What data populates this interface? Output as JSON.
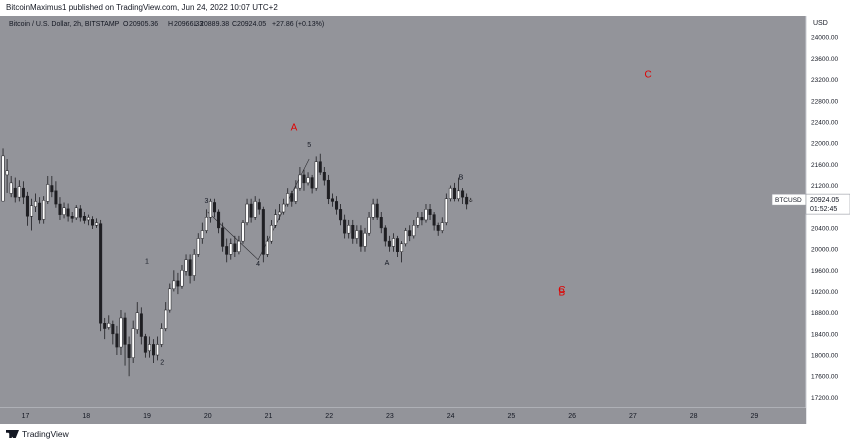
{
  "header": {
    "published": "BitcoinMaximus1 published on TradingView.com, Jun 24, 2022 10:07 UTC+2"
  },
  "legend": {
    "title": "Bitcoin / U.S. Dollar, 2h, BITSTAMP",
    "o_label": "O",
    "o_value": "20905.36",
    "h_label": "H",
    "h_value": "20966.33",
    "l_label": "L",
    "l_value": "20889.38",
    "c_label": "C",
    "c_value": "20924.05",
    "change": "+27.86 (+0.13%)"
  },
  "footer": {
    "brand": "TradingView"
  },
  "colors": {
    "background": "#93949a",
    "up_candle": "#ffffff",
    "down_candle": "#1e1e22",
    "red_label": "#e00000",
    "axis_bg": "#ffffff"
  },
  "chart_data": {
    "type": "candlestick",
    "currency_label": "USD",
    "ylim": [
      17000,
      24400
    ],
    "y_ticks": [
      24000,
      23600,
      23200,
      22800,
      22400,
      22000,
      21600,
      21200,
      20800,
      20400,
      20000,
      19600,
      19200,
      18800,
      18400,
      18000,
      17600,
      17200
    ],
    "y_tick_labels": [
      "24000.00",
      "23600.00",
      "23200.00",
      "22800.00",
      "22400.00",
      "22000.00",
      "21600.00",
      "21200.00",
      "20800.00",
      "20400.00",
      "20000.00",
      "19600.00",
      "19200.00",
      "18800.00",
      "18400.00",
      "18000.00",
      "17600.00",
      "17200.00"
    ],
    "xlim": [
      16.58,
      29.85
    ],
    "x_ticks": [
      17,
      18,
      19,
      20,
      21,
      22,
      23,
      24,
      25,
      26,
      27,
      28,
      29
    ],
    "x_tick_labels": [
      "17",
      "18",
      "19",
      "20",
      "21",
      "22",
      "23",
      "24",
      "25",
      "26",
      "27",
      "28",
      "29"
    ],
    "price_tag": {
      "symbol": "BTCUSD",
      "price": "20924.05",
      "countdown": "01:52:45",
      "value": 20924.05
    },
    "waves_black": [
      {
        "text": "1",
        "x": 19.0,
        "y": 19730
      },
      {
        "text": "2",
        "x": 19.25,
        "y": 17820
      },
      {
        "text": "3",
        "x": 19.98,
        "y": 20870
      },
      {
        "text": "4",
        "x": 20.83,
        "y": 19680
      },
      {
        "text": "5",
        "x": 21.67,
        "y": 21930
      },
      {
        "text": "A",
        "x": 22.95,
        "y": 19700
      },
      {
        "text": "B",
        "x": 24.17,
        "y": 21310
      }
    ],
    "waves_red": [
      {
        "text": "A",
        "x": 21.42,
        "y": 22240
      },
      {
        "text": "C",
        "x": 27.25,
        "y": 23240
      },
      {
        "text": "C",
        "x": 25.83,
        "y": 19170
      },
      {
        "text": "B",
        "x": 25.83,
        "y": 19120
      }
    ],
    "candles": [
      [
        20905,
        21760,
        21900,
        21480
      ],
      [
        21400,
        21480,
        21700,
        21060
      ],
      [
        21050,
        21250,
        21380,
        20980
      ],
      [
        21150,
        20980,
        21350,
        20880
      ],
      [
        20980,
        21180,
        21300,
        20900
      ],
      [
        21150,
        20980,
        21280,
        20850
      ],
      [
        21000,
        20620,
        21080,
        20440
      ],
      [
        20620,
        20820,
        20950,
        20350
      ],
      [
        20800,
        20900,
        21050,
        20700
      ],
      [
        20870,
        20550,
        20980,
        20480
      ],
      [
        20560,
        20920,
        21000,
        20480
      ],
      [
        20900,
        21220,
        21380,
        20850
      ],
      [
        21200,
        21080,
        21380,
        20980
      ],
      [
        21100,
        20850,
        21280,
        20780
      ],
      [
        20850,
        20650,
        20980,
        20550
      ],
      [
        20650,
        20780,
        20880,
        20580
      ],
      [
        20760,
        20620,
        20860,
        20520
      ],
      [
        20620,
        20580,
        20700,
        20500
      ],
      [
        20590,
        20780,
        20830,
        20550
      ],
      [
        20760,
        20600,
        20830,
        20520
      ],
      [
        20620,
        20540,
        20700,
        20480
      ],
      [
        20550,
        20600,
        20650,
        20450
      ],
      [
        20560,
        20450,
        20620,
        20380
      ],
      [
        20450,
        20500,
        20580,
        20400
      ],
      [
        20480,
        18600,
        20550,
        18450
      ],
      [
        18600,
        18500,
        18700,
        18300
      ],
      [
        18520,
        18600,
        18750,
        18480
      ],
      [
        18580,
        18400,
        18650,
        18200
      ],
      [
        18400,
        18150,
        18550,
        18000
      ],
      [
        18150,
        18700,
        18850,
        18000
      ],
      [
        18700,
        18200,
        18800,
        17800
      ],
      [
        18200,
        17950,
        18350,
        17600
      ],
      [
        17950,
        18500,
        18650,
        17850
      ],
      [
        18480,
        18800,
        19000,
        18400
      ],
      [
        18780,
        18350,
        18900,
        18200
      ],
      [
        18350,
        18050,
        18400,
        17950
      ],
      [
        18080,
        18200,
        18350,
        17950
      ],
      [
        18200,
        18000,
        18300,
        17850
      ],
      [
        18000,
        18200,
        18350,
        17900
      ],
      [
        18200,
        18500,
        18600,
        18150
      ],
      [
        18500,
        18850,
        19000,
        18450
      ],
      [
        18850,
        19250,
        19350,
        18800
      ],
      [
        19250,
        19400,
        19600,
        19200
      ],
      [
        19400,
        19300,
        19550,
        19150
      ],
      [
        19300,
        19600,
        19700,
        19250
      ],
      [
        19580,
        19800,
        19900,
        19500
      ],
      [
        19800,
        19500,
        19900,
        19350
      ],
      [
        19500,
        19900,
        20000,
        19400
      ],
      [
        19900,
        20200,
        20300,
        19850
      ],
      [
        20200,
        20350,
        20500,
        20100
      ],
      [
        20350,
        20600,
        20750,
        20300
      ],
      [
        20600,
        20900,
        20950,
        20500
      ],
      [
        20880,
        20700,
        20950,
        20600
      ],
      [
        20700,
        20400,
        20750,
        20300
      ],
      [
        20400,
        20050,
        20500,
        19950
      ],
      [
        20050,
        19900,
        20200,
        19750
      ],
      [
        19900,
        20100,
        20200,
        19800
      ],
      [
        20100,
        19950,
        20250,
        19850
      ],
      [
        19950,
        20150,
        20250,
        19900
      ],
      [
        20150,
        20500,
        20550,
        20100
      ],
      [
        20500,
        20850,
        20950,
        20450
      ],
      [
        20850,
        20600,
        20950,
        20500
      ],
      [
        20600,
        20900,
        21000,
        20550
      ],
      [
        20880,
        20750,
        20950,
        20650
      ],
      [
        20750,
        19900,
        20800,
        19750
      ],
      [
        19900,
        20150,
        20250,
        19850
      ],
      [
        20150,
        20450,
        20550,
        20100
      ],
      [
        20450,
        20650,
        20750,
        20400
      ],
      [
        20650,
        20700,
        20850,
        20550
      ],
      [
        20700,
        20850,
        20950,
        20650
      ],
      [
        20850,
        21050,
        21150,
        20800
      ],
      [
        21050,
        20900,
        21100,
        20800
      ],
      [
        20900,
        21150,
        21300,
        20850
      ],
      [
        21150,
        21400,
        21550,
        21100
      ],
      [
        21400,
        21250,
        21500,
        21100
      ],
      [
        21250,
        21350,
        21450,
        21200
      ],
      [
        21350,
        21150,
        21400,
        21050
      ],
      [
        21150,
        21650,
        21750,
        21100
      ],
      [
        21650,
        21450,
        21800,
        21400
      ],
      [
        21450,
        21300,
        21550,
        21200
      ],
      [
        21300,
        20950,
        21400,
        20850
      ],
      [
        20950,
        20900,
        21050,
        20800
      ],
      [
        20900,
        20750,
        21000,
        20650
      ],
      [
        20750,
        20550,
        20850,
        20450
      ],
      [
        20550,
        20300,
        20650,
        20200
      ],
      [
        20300,
        20450,
        20550,
        20200
      ],
      [
        20450,
        20200,
        20550,
        20100
      ],
      [
        20200,
        20350,
        20450,
        20100
      ],
      [
        20350,
        20050,
        20450,
        19950
      ],
      [
        20050,
        20300,
        20400,
        19950
      ],
      [
        20300,
        20600,
        20700,
        20250
      ],
      [
        20600,
        20850,
        20950,
        20550
      ],
      [
        20850,
        20600,
        20950,
        20550
      ],
      [
        20600,
        20400,
        20700,
        20300
      ],
      [
        20400,
        20150,
        20450,
        20050
      ],
      [
        20150,
        20050,
        20250,
        19950
      ],
      [
        20050,
        20200,
        20300,
        19950
      ],
      [
        20200,
        19950,
        20250,
        19850
      ],
      [
        19950,
        20100,
        20150,
        19750
      ],
      [
        20100,
        20350,
        20400,
        20050
      ],
      [
        20350,
        20250,
        20450,
        20150
      ],
      [
        20250,
        20450,
        20550,
        20200
      ],
      [
        20450,
        20600,
        20700,
        20400
      ],
      [
        20600,
        20550,
        20700,
        20450
      ],
      [
        20550,
        20750,
        20850,
        20500
      ],
      [
        20750,
        20650,
        20850,
        20550
      ],
      [
        20650,
        20450,
        20700,
        20350
      ],
      [
        20450,
        20350,
        20500,
        20250
      ],
      [
        20350,
        20500,
        20600,
        20300
      ],
      [
        20500,
        20950,
        21050,
        20450
      ],
      [
        20950,
        21150,
        21200,
        20900
      ],
      [
        21150,
        20950,
        21250,
        20900
      ],
      [
        20950,
        21100,
        21350,
        20900
      ],
      [
        21100,
        20980,
        21150,
        20850
      ],
      [
        20980,
        20850,
        21050,
        20750
      ],
      [
        20905,
        20924,
        20966,
        20889
      ]
    ]
  }
}
